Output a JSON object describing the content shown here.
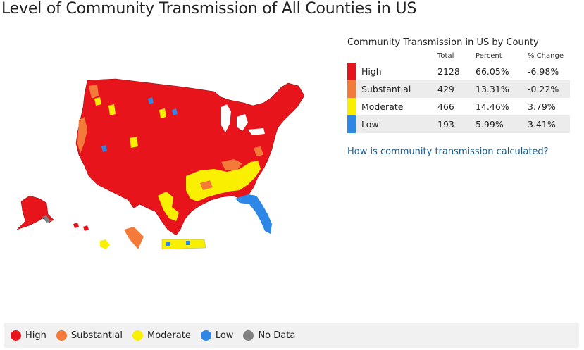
{
  "page": {
    "title": "Level of Community Transmission of All Counties in US"
  },
  "summary": {
    "title": "Community Transmission in US by County",
    "columns": {
      "label": "",
      "total": "Total",
      "percent": "Percent",
      "change": "% Change"
    },
    "rows": [
      {
        "label": "High",
        "total": "2128",
        "percent": "66.05%",
        "change": "-6.98%",
        "color": "#e8141c"
      },
      {
        "label": "Substantial",
        "total": "429",
        "percent": "13.31%",
        "change": "-0.22%",
        "color": "#f47a3a"
      },
      {
        "label": "Moderate",
        "total": "466",
        "percent": "14.46%",
        "change": "3.79%",
        "color": "#f8f000"
      },
      {
        "label": "Low",
        "total": "193",
        "percent": "5.99%",
        "change": "3.41%",
        "color": "#2e86e6"
      }
    ],
    "help_link": "How is community transmission calculated?"
  },
  "legend": {
    "items": [
      {
        "label": "High",
        "color": "#e8141c"
      },
      {
        "label": "Substantial",
        "color": "#f47a3a"
      },
      {
        "label": "Moderate",
        "color": "#f8f000"
      },
      {
        "label": "Low",
        "color": "#2e86e6"
      },
      {
        "label": "No Data",
        "color": "#808080"
      }
    ]
  },
  "map": {
    "colors": {
      "high": "#e8141c",
      "substantial": "#f47a3a",
      "moderate": "#f8f000",
      "low": "#2e86e6",
      "nodata": "#808080"
    }
  }
}
